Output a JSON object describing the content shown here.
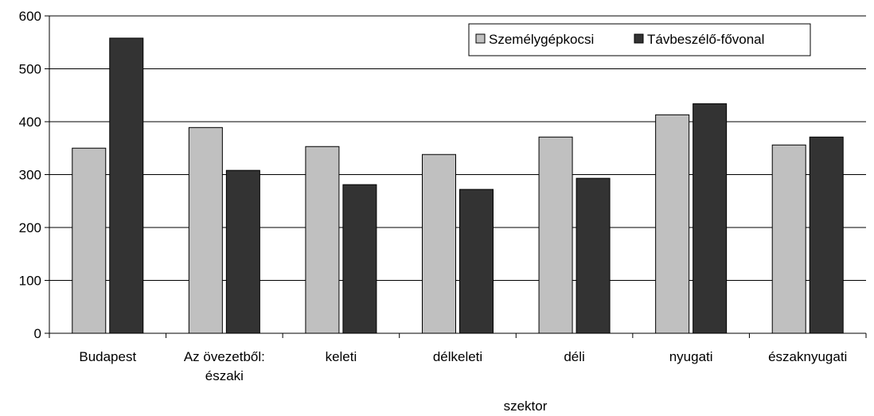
{
  "chart_data": {
    "type": "bar",
    "title": "",
    "xlabel": "szektor",
    "ylabel": "",
    "ylim": [
      0,
      600
    ],
    "yticks": [
      0,
      100,
      200,
      300,
      400,
      500,
      600
    ],
    "grid": true,
    "legend_position": "top-right",
    "categories": [
      [
        "Budapest"
      ],
      [
        "Az övezetből:",
        "északi"
      ],
      [
        "keleti"
      ],
      [
        "délkeleti"
      ],
      [
        "déli"
      ],
      [
        "nyugati"
      ],
      [
        "északnyugati"
      ]
    ],
    "series": [
      {
        "name": "Személygépkocsi",
        "color": "#c0c0c0",
        "values": [
          350,
          389,
          353,
          338,
          371,
          413,
          356
        ]
      },
      {
        "name": "Távbeszélő-fővonal",
        "color": "#333333",
        "values": [
          558,
          308,
          281,
          272,
          293,
          434,
          371
        ]
      }
    ]
  }
}
